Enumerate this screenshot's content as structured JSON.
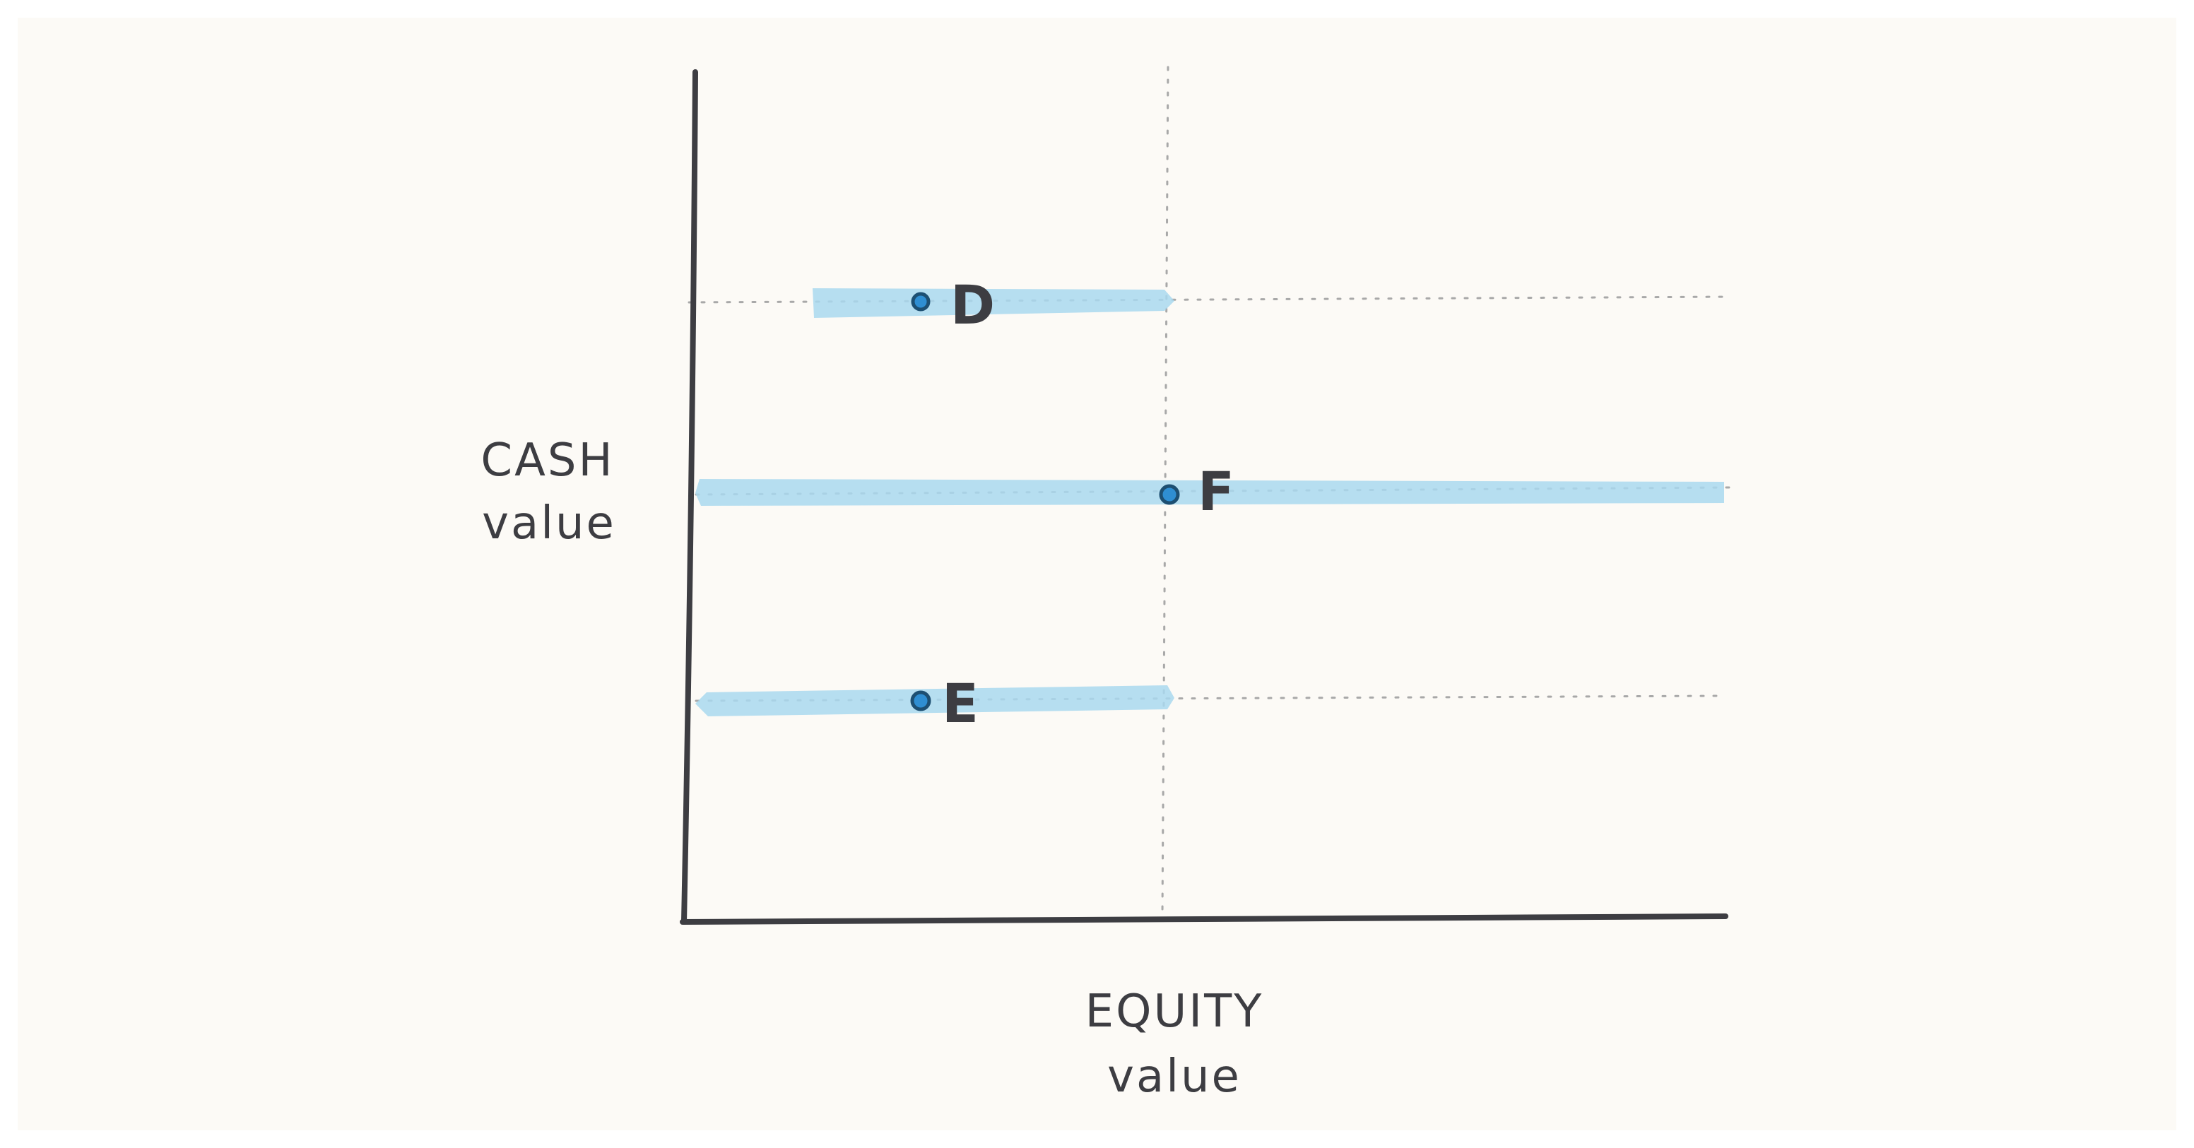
{
  "colors": {
    "paper": "#fcfaf6",
    "ink": "#3d3d42",
    "guide": "#a8a8a8",
    "highlight": "#a9d8ee",
    "point_fill": "#2f8ed2",
    "point_stroke": "#1d4f72"
  },
  "axes": {
    "y_title_line1": "CASH",
    "y_title_line2": "value",
    "x_title_line1": "EQUITY",
    "x_title_line2": "value"
  },
  "points": [
    {
      "label": "D"
    },
    {
      "label": "F"
    },
    {
      "label": "E"
    }
  ]
}
